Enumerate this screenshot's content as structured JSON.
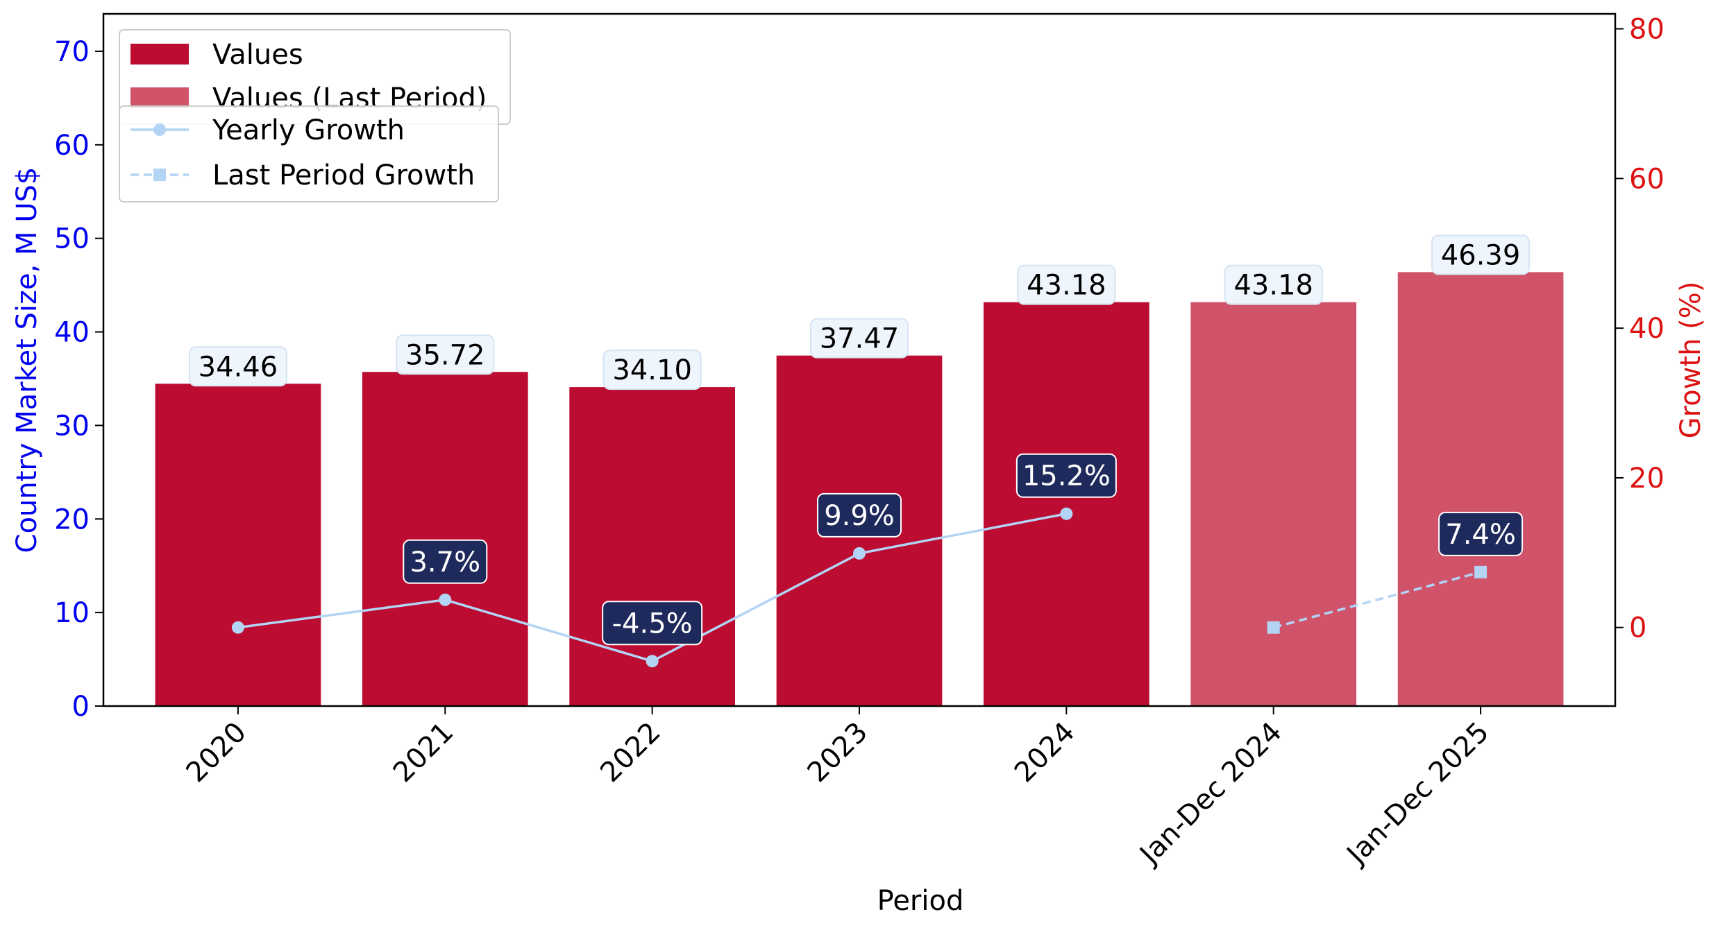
{
  "chart_data": {
    "type": "bar",
    "categories": [
      "2020",
      "2021",
      "2022",
      "2023",
      "2024",
      "Jan-Dec 2024",
      "Jan-Dec 2025"
    ],
    "xlabel": "Period",
    "ylabel": "Country Market Size, M US$",
    "y2label": "Growth (%)",
    "ylim": [
      0,
      74
    ],
    "y2lim": [
      -10.5,
      82
    ],
    "yticks": [
      0,
      10,
      20,
      30,
      40,
      50,
      60,
      70
    ],
    "y2ticks": [
      0,
      20,
      40,
      60,
      80
    ],
    "grid": false,
    "legend_placement": "top-left",
    "series": [
      {
        "name": "Values",
        "kind": "bar",
        "color": "#bc0c31",
        "values": [
          34.46,
          35.72,
          34.1,
          37.47,
          43.18,
          null,
          null
        ],
        "labels": [
          "34.46",
          "35.72",
          "34.10",
          "37.47",
          "43.18",
          "",
          ""
        ]
      },
      {
        "name": "Values (Last Period)",
        "kind": "bar",
        "color": "#d0536a",
        "values": [
          null,
          null,
          null,
          null,
          null,
          43.18,
          46.39
        ],
        "labels": [
          "",
          "",
          "",
          "",
          "",
          "43.18",
          "46.39"
        ]
      },
      {
        "name": "Yearly Growth",
        "kind": "line",
        "axis": "right",
        "color": "#b3d4f5",
        "marker": "circle",
        "dash": "solid",
        "values": [
          0,
          3.7,
          -4.5,
          9.9,
          15.2,
          null,
          null
        ],
        "labels": [
          "",
          "3.7%",
          "-4.5%",
          "9.9%",
          "15.2%",
          "",
          ""
        ]
      },
      {
        "name": "Last Period Growth",
        "kind": "line",
        "axis": "right",
        "color": "#b3d4f5",
        "marker": "square",
        "dash": "dashed",
        "values": [
          null,
          null,
          null,
          null,
          null,
          0,
          7.4
        ],
        "labels": [
          "",
          "",
          "",
          "",
          "",
          "",
          "7.4%"
        ]
      }
    ],
    "colors": {
      "left_axis_text": "#0000ee",
      "right_axis_text": "#dd1111",
      "growth_label_bg": "#1f2a5c",
      "value_label_bg": "#eef5fc"
    }
  }
}
